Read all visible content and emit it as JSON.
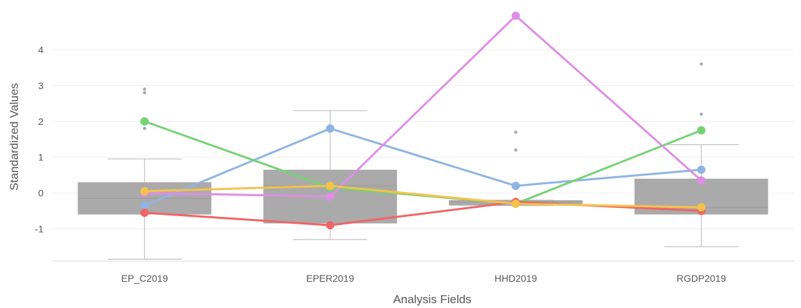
{
  "chart_data": {
    "type": "box",
    "xlabel": "Analysis Fields",
    "ylabel": "Standardized Values",
    "categories": [
      "EP_C2019",
      "EPER2019",
      "HHD2019",
      "RGDP2019"
    ],
    "y_ticks": [
      -1,
      0,
      1,
      2,
      3,
      4
    ],
    "ylim": [
      -1.9,
      5.1
    ],
    "grid": true,
    "legend": "none",
    "boxes": [
      {
        "category": "EP_C2019",
        "q1": -0.6,
        "median": -0.15,
        "q3": 0.3,
        "whisker_low": -1.85,
        "whisker_high": 0.95,
        "outliers": [
          1.8,
          2.8,
          2.9
        ]
      },
      {
        "category": "EPER2019",
        "q1": -0.85,
        "median": 0.2,
        "q3": 0.65,
        "whisker_low": -1.3,
        "whisker_high": 2.3,
        "outliers": []
      },
      {
        "category": "HHD2019",
        "q1": -0.35,
        "median": -0.25,
        "q3": -0.2,
        "whisker_low": -0.35,
        "whisker_high": -0.2,
        "outliers": [
          1.2,
          1.7
        ]
      },
      {
        "category": "RGDP2019",
        "q1": -0.6,
        "median": -0.4,
        "q3": 0.4,
        "whisker_low": -1.5,
        "whisker_high": 1.35,
        "outliers": [
          2.2,
          3.6
        ]
      }
    ],
    "series": [
      {
        "color": "#8fb4e3",
        "values": [
          -0.35,
          1.8,
          0.2,
          0.65
        ]
      },
      {
        "color": "#75d275",
        "values": [
          2.0,
          0.15,
          -0.3,
          1.75
        ]
      },
      {
        "color": "#de8ee6",
        "values": [
          0.0,
          -0.1,
          4.95,
          0.35
        ]
      },
      {
        "color": "#f06464",
        "values": [
          -0.55,
          -0.9,
          -0.25,
          -0.5
        ]
      },
      {
        "color": "#f5c24a",
        "values": [
          0.05,
          0.2,
          -0.3,
          -0.4
        ]
      }
    ],
    "colors": {
      "box_fill": "#aaaaaa",
      "whisker": "#c0c0c0",
      "outlier": "#a8a8a8",
      "grid": "#eeeeee",
      "axis": "#dddddd"
    }
  }
}
